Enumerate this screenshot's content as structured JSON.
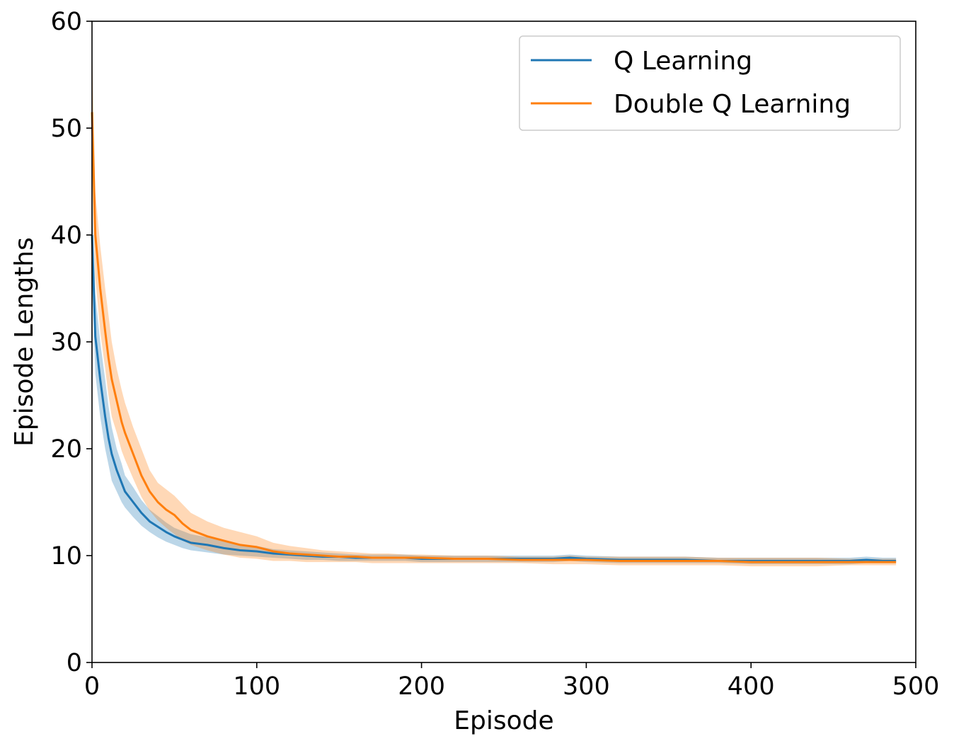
{
  "chart_data": {
    "type": "line",
    "title": "",
    "xlabel": "Episode",
    "ylabel": "Episode Lengths",
    "xlim": [
      0,
      500
    ],
    "ylim": [
      0,
      60
    ],
    "xticks": [
      0,
      100,
      200,
      300,
      400,
      500
    ],
    "yticks": [
      0,
      10,
      20,
      30,
      40,
      50,
      60
    ],
    "grid": false,
    "legend_position": "top-right",
    "series": [
      {
        "name": "Q Learning",
        "color": "#1f77b4",
        "x": [
          0,
          2,
          5,
          8,
          10,
          12,
          15,
          18,
          20,
          25,
          30,
          35,
          40,
          45,
          50,
          55,
          60,
          70,
          80,
          90,
          100,
          110,
          120,
          130,
          140,
          150,
          160,
          170,
          180,
          190,
          200,
          220,
          240,
          260,
          280,
          290,
          300,
          320,
          340,
          360,
          380,
          400,
          420,
          440,
          460,
          470,
          480,
          488
        ],
        "y": [
          40.0,
          30.5,
          26.5,
          23.0,
          21.0,
          19.5,
          18.0,
          16.8,
          16.0,
          15.0,
          14.0,
          13.2,
          12.7,
          12.2,
          11.8,
          11.5,
          11.2,
          11.0,
          10.7,
          10.5,
          10.4,
          10.2,
          10.1,
          10.0,
          9.9,
          9.9,
          9.8,
          9.8,
          9.8,
          9.8,
          9.7,
          9.7,
          9.7,
          9.7,
          9.7,
          9.8,
          9.7,
          9.6,
          9.6,
          9.6,
          9.5,
          9.5,
          9.5,
          9.5,
          9.5,
          9.6,
          9.5,
          9.5
        ],
        "lower": [
          36.0,
          27.0,
          23.0,
          20.0,
          18.5,
          17.0,
          16.0,
          15.0,
          14.5,
          13.6,
          12.8,
          12.2,
          11.7,
          11.3,
          11.0,
          10.7,
          10.5,
          10.3,
          10.1,
          10.0,
          9.9,
          9.8,
          9.7,
          9.6,
          9.6,
          9.5,
          9.5,
          9.5,
          9.5,
          9.5,
          9.4,
          9.4,
          9.4,
          9.4,
          9.4,
          9.5,
          9.4,
          9.3,
          9.3,
          9.3,
          9.3,
          9.2,
          9.2,
          9.2,
          9.2,
          9.3,
          9.3,
          9.3
        ],
        "upper": [
          45.0,
          34.5,
          30.0,
          26.5,
          24.0,
          22.0,
          20.0,
          18.6,
          17.5,
          16.4,
          15.2,
          14.3,
          13.7,
          13.1,
          12.6,
          12.3,
          12.0,
          11.7,
          11.3,
          11.0,
          10.9,
          10.6,
          10.5,
          10.4,
          10.3,
          10.2,
          10.1,
          10.1,
          10.1,
          10.1,
          10.0,
          10.0,
          10.0,
          10.0,
          10.0,
          10.1,
          10.0,
          9.9,
          9.9,
          9.9,
          9.8,
          9.8,
          9.8,
          9.8,
          9.8,
          9.9,
          9.8,
          9.8
        ]
      },
      {
        "name": "Double Q Learning",
        "color": "#ff7f0e",
        "x": [
          0,
          2,
          5,
          8,
          10,
          12,
          15,
          18,
          20,
          25,
          30,
          35,
          40,
          45,
          50,
          55,
          60,
          70,
          80,
          90,
          100,
          110,
          120,
          130,
          140,
          150,
          160,
          170,
          180,
          190,
          200,
          220,
          240,
          260,
          280,
          290,
          300,
          320,
          340,
          360,
          380,
          400,
          420,
          440,
          460,
          470,
          480,
          488
        ],
        "y": [
          51.5,
          40.0,
          35.0,
          31.0,
          28.5,
          26.5,
          24.5,
          22.5,
          21.5,
          19.5,
          17.5,
          16.0,
          15.0,
          14.3,
          13.8,
          13.0,
          12.4,
          11.8,
          11.4,
          11.0,
          10.8,
          10.4,
          10.2,
          10.1,
          10.0,
          9.9,
          9.9,
          9.8,
          9.8,
          9.8,
          9.8,
          9.7,
          9.7,
          9.6,
          9.6,
          9.6,
          9.6,
          9.5,
          9.5,
          9.5,
          9.5,
          9.4,
          9.4,
          9.4,
          9.4,
          9.4,
          9.4,
          9.4
        ],
        "lower": [
          45.0,
          36.0,
          31.0,
          27.5,
          25.0,
          23.0,
          21.5,
          19.8,
          19.0,
          17.2,
          15.5,
          14.2,
          13.3,
          12.6,
          12.0,
          11.4,
          11.0,
          10.5,
          10.1,
          9.8,
          9.7,
          9.5,
          9.5,
          9.4,
          9.4,
          9.4,
          9.4,
          9.3,
          9.3,
          9.3,
          9.3,
          9.3,
          9.3,
          9.3,
          9.2,
          9.2,
          9.2,
          9.1,
          9.1,
          9.1,
          9.1,
          9.0,
          9.0,
          9.0,
          9.1,
          9.1,
          9.1,
          9.1
        ],
        "upper": [
          58.0,
          44.0,
          39.0,
          35.0,
          32.5,
          30.0,
          27.5,
          25.5,
          24.3,
          22.0,
          20.0,
          18.0,
          16.8,
          16.2,
          15.6,
          14.8,
          14.0,
          13.2,
          12.6,
          12.2,
          11.8,
          11.2,
          10.9,
          10.7,
          10.5,
          10.4,
          10.3,
          10.2,
          10.2,
          10.1,
          10.1,
          10.0,
          10.0,
          9.9,
          9.9,
          10.0,
          9.9,
          9.9,
          9.9,
          9.9,
          9.8,
          9.8,
          9.8,
          9.8,
          9.7,
          9.7,
          9.7,
          9.7
        ]
      }
    ]
  }
}
